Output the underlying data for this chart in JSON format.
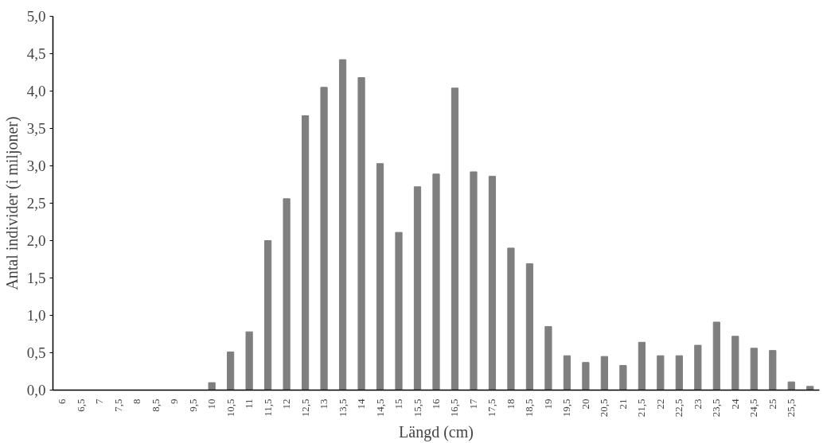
{
  "chart_data": {
    "type": "bar",
    "xlabel": "Längd (cm)",
    "ylabel": "Antal individer (i miljoner)",
    "categories": [
      "6",
      "6,5",
      "7",
      "7,5",
      "8",
      "8,5",
      "9",
      "9,5",
      "10",
      "10,5",
      "11",
      "11,5",
      "12",
      "12,5",
      "13",
      "13,5",
      "14",
      "14,5",
      "15",
      "15,5",
      "16",
      "16,5",
      "17",
      "17,5",
      "18",
      "18,5",
      "19",
      "19,5",
      "20",
      "20,5",
      "21",
      "21,5",
      "22",
      "22,5",
      "23",
      "23,5",
      "24",
      "24,5",
      "25",
      "25,5",
      null
    ],
    "values": [
      0,
      0,
      0,
      0,
      0,
      0,
      0,
      0,
      0.1,
      0.51,
      0.78,
      2.0,
      2.56,
      3.67,
      4.05,
      4.42,
      4.18,
      3.03,
      2.11,
      2.72,
      2.89,
      4.04,
      2.92,
      2.86,
      1.9,
      1.69,
      0.85,
      0.46,
      0.37,
      0.45,
      0.33,
      0.64,
      0.46,
      0.46,
      0.6,
      0.91,
      0.72,
      0.56,
      0.53,
      0.11,
      0.05
    ],
    "color": "#7f7f7f",
    "ylim": [
      0,
      5
    ],
    "yticks": [
      {
        "value": 0,
        "label": "0,0"
      },
      {
        "value": 0.5,
        "label": "0,5"
      },
      {
        "value": 1,
        "label": "1,0"
      },
      {
        "value": 1.5,
        "label": "1,5"
      },
      {
        "value": 2,
        "label": "2,0"
      },
      {
        "value": 2.5,
        "label": "2,5"
      },
      {
        "value": 3,
        "label": "3,0"
      },
      {
        "value": 3.5,
        "label": "3,5"
      },
      {
        "value": 4,
        "label": "4,0"
      },
      {
        "value": 4.5,
        "label": "4,5"
      },
      {
        "value": 5,
        "label": "5,0"
      }
    ],
    "grid": false
  }
}
